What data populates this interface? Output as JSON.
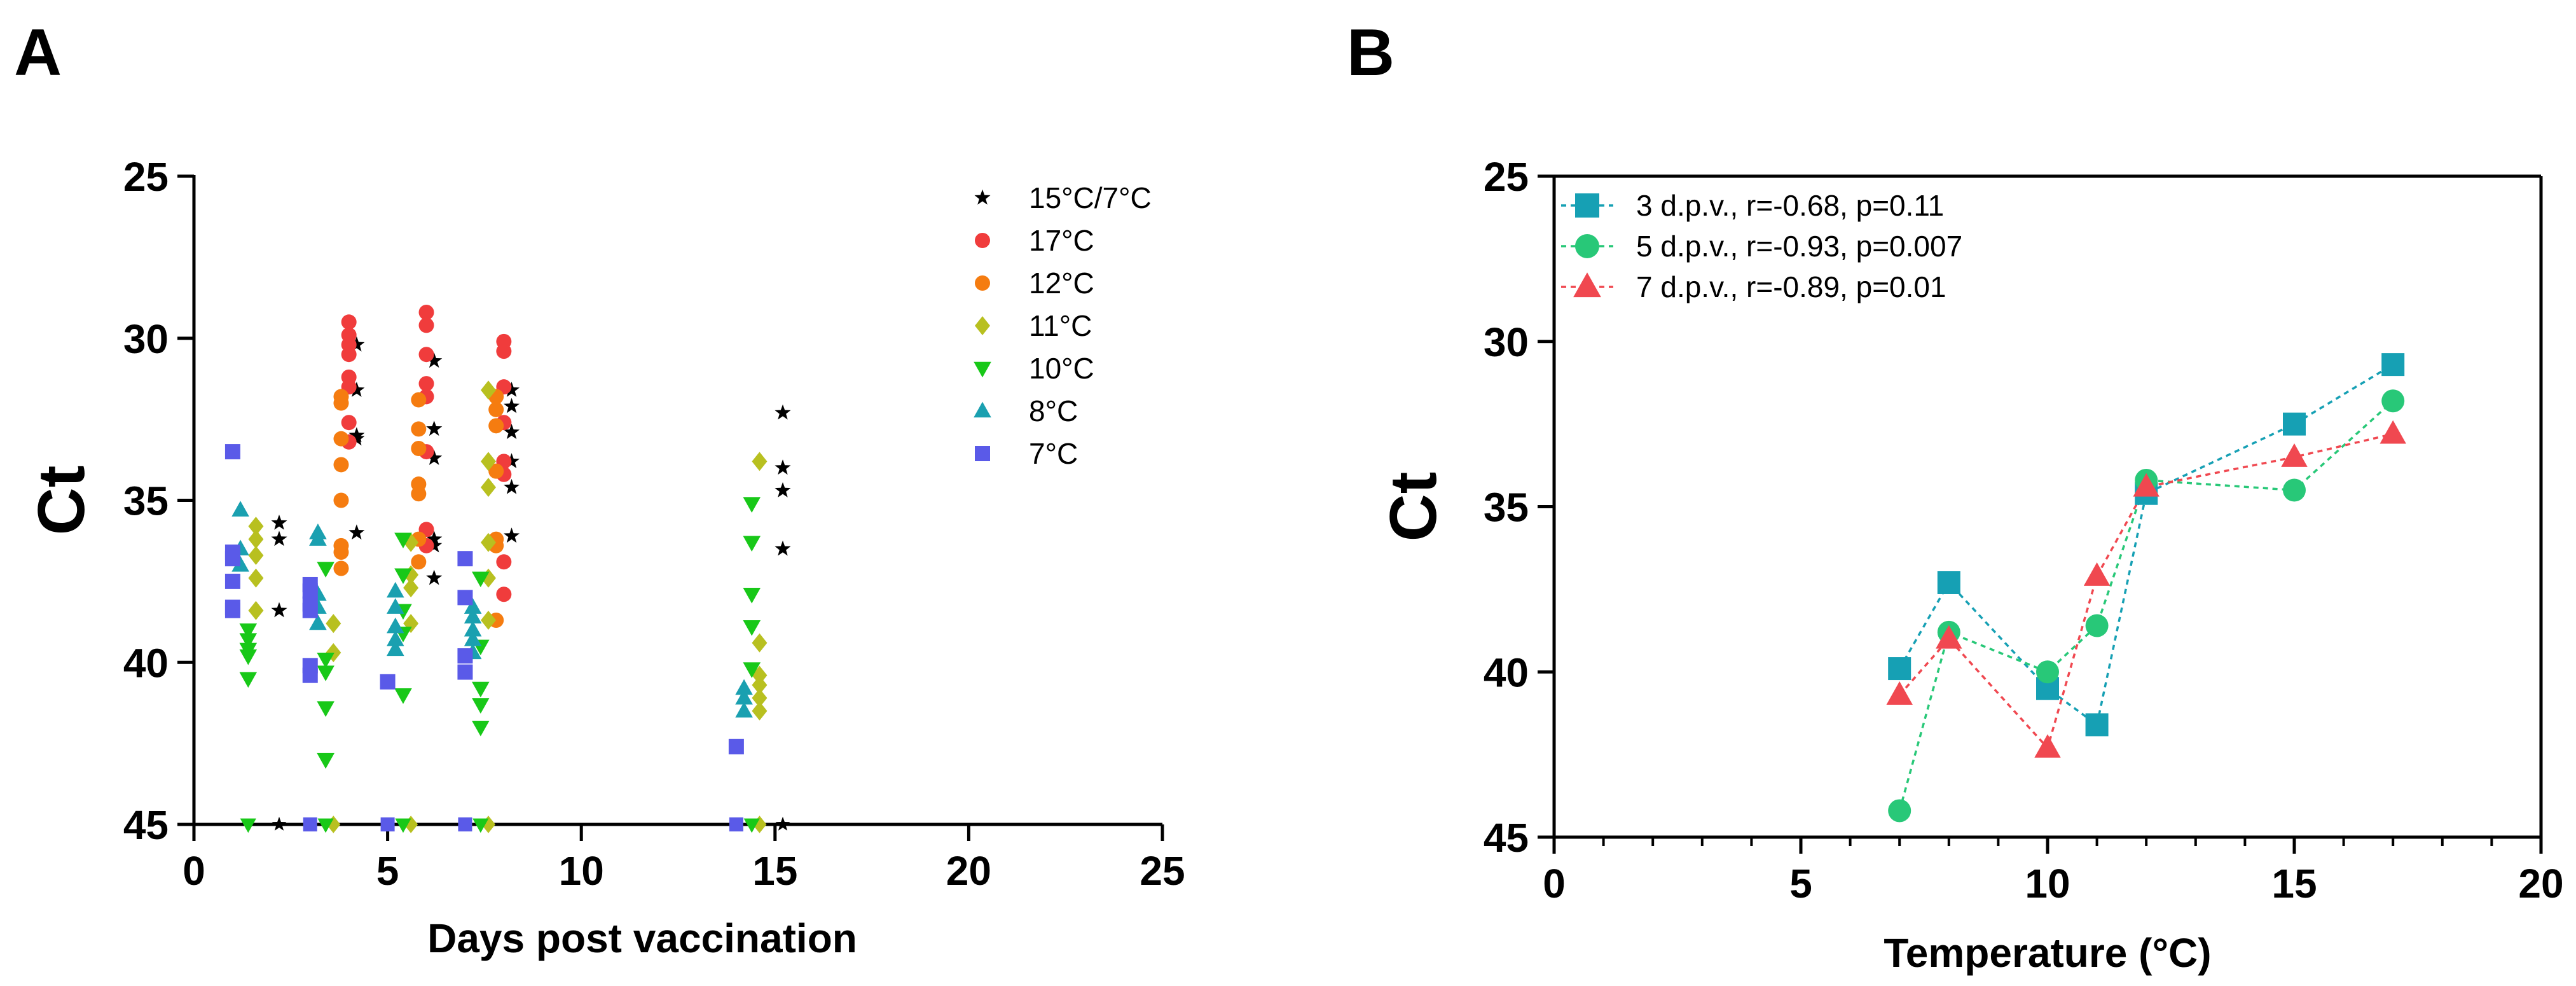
{
  "chart_data": [
    {
      "panel": "A",
      "type": "scatter",
      "title": "",
      "xlabel": "Days post vaccination",
      "ylabel": "Ct",
      "xlim": [
        0,
        25
      ],
      "ylim": [
        25,
        45
      ],
      "y_inverted": true,
      "xticks": [
        0,
        5,
        10,
        15,
        20,
        25
      ],
      "yticks": [
        25,
        30,
        35,
        40,
        45
      ],
      "legend_position": "top-right",
      "series": [
        {
          "name": "15°C/7°C",
          "color": "#000000",
          "marker": "star",
          "points": [
            [
              2.2,
              35.7
            ],
            [
              2.2,
              36.2
            ],
            [
              2.2,
              38.4
            ],
            [
              2.2,
              45
            ],
            [
              4.2,
              30.2
            ],
            [
              4.2,
              31.6
            ],
            [
              4.2,
              33
            ],
            [
              4.2,
              33.1
            ],
            [
              4.2,
              36
            ],
            [
              6.2,
              30.7
            ],
            [
              6.2,
              32.8
            ],
            [
              6.2,
              33.7
            ],
            [
              6.2,
              36.2
            ],
            [
              6.2,
              36.4
            ],
            [
              6.2,
              37.4
            ],
            [
              8.2,
              31.6
            ],
            [
              8.2,
              32.1
            ],
            [
              8.2,
              32.9
            ],
            [
              8.2,
              33.8
            ],
            [
              8.2,
              34.6
            ],
            [
              8.2,
              36.1
            ],
            [
              15.2,
              32.3
            ],
            [
              15.2,
              34
            ],
            [
              15.2,
              34.7
            ],
            [
              15.2,
              36.5
            ],
            [
              15.2,
              45
            ]
          ]
        },
        {
          "name": "17°C",
          "color": "#f03c3c",
          "marker": "circle",
          "points": [
            [
              4,
              29.5
            ],
            [
              4,
              29.9
            ],
            [
              4,
              30.2
            ],
            [
              4,
              30.5
            ],
            [
              4,
              31.2
            ],
            [
              4,
              31.5
            ],
            [
              4,
              32.6
            ],
            [
              4,
              33.2
            ],
            [
              6,
              29.2
            ],
            [
              6,
              29.6
            ],
            [
              6,
              30.5
            ],
            [
              6,
              31.4
            ],
            [
              6,
              31.8
            ],
            [
              6,
              33.5
            ],
            [
              6,
              35.9
            ],
            [
              6,
              36.4
            ],
            [
              8,
              30.1
            ],
            [
              8,
              30.4
            ],
            [
              8,
              31.5
            ],
            [
              8,
              32.6
            ],
            [
              8,
              33.8
            ],
            [
              8,
              34.2
            ],
            [
              8,
              36.9
            ],
            [
              8,
              37.9
            ]
          ]
        },
        {
          "name": "12°C",
          "color": "#f57c10",
          "marker": "circle",
          "points": [
            [
              3.8,
              31.8
            ],
            [
              3.8,
              32
            ],
            [
              3.8,
              33.1
            ],
            [
              3.8,
              33.9
            ],
            [
              3.8,
              35
            ],
            [
              3.8,
              36.4
            ],
            [
              3.8,
              36.6
            ],
            [
              3.8,
              37.1
            ],
            [
              5.8,
              31.9
            ],
            [
              5.8,
              32.8
            ],
            [
              5.8,
              33.4
            ],
            [
              5.8,
              34.5
            ],
            [
              5.8,
              34.8
            ],
            [
              5.8,
              36.2
            ],
            [
              5.8,
              36.9
            ],
            [
              7.8,
              31.8
            ],
            [
              7.8,
              32.2
            ],
            [
              7.8,
              32.7
            ],
            [
              7.8,
              34.1
            ],
            [
              7.8,
              36.2
            ],
            [
              7.8,
              36.4
            ],
            [
              7.8,
              38.7
            ]
          ]
        },
        {
          "name": "11°C",
          "color": "#b8c020",
          "marker": "diamond",
          "points": [
            [
              1.6,
              35.8
            ],
            [
              1.6,
              36.2
            ],
            [
              1.6,
              36.7
            ],
            [
              1.6,
              37.4
            ],
            [
              1.6,
              38.4
            ],
            [
              3.6,
              38.8
            ],
            [
              3.6,
              39.7
            ],
            [
              3.6,
              45
            ],
            [
              5.6,
              36.3
            ],
            [
              5.6,
              37.3
            ],
            [
              5.6,
              37.7
            ],
            [
              5.6,
              38.8
            ],
            [
              5.6,
              45
            ],
            [
              7.6,
              31.6
            ],
            [
              7.6,
              33.8
            ],
            [
              7.6,
              34.6
            ],
            [
              7.6,
              36.3
            ],
            [
              7.6,
              37.4
            ],
            [
              7.6,
              38.7
            ],
            [
              7.6,
              45
            ],
            [
              14.6,
              33.8
            ],
            [
              14.6,
              39.4
            ],
            [
              14.6,
              40.4
            ],
            [
              14.6,
              40.7
            ],
            [
              14.6,
              41.1
            ],
            [
              14.6,
              41.5
            ],
            [
              14.6,
              45
            ]
          ]
        },
        {
          "name": "10°C",
          "color": "#18c818",
          "marker": "triangle-down",
          "points": [
            [
              1.4,
              39
            ],
            [
              1.4,
              39.3
            ],
            [
              1.4,
              39.6
            ],
            [
              1.4,
              39.8
            ],
            [
              1.4,
              40.5
            ],
            [
              1.4,
              45
            ],
            [
              3.4,
              37.1
            ],
            [
              3.4,
              39.9
            ],
            [
              3.4,
              40.3
            ],
            [
              3.4,
              41.4
            ],
            [
              3.4,
              43
            ],
            [
              3.4,
              45
            ],
            [
              5.4,
              36.2
            ],
            [
              5.4,
              37.3
            ],
            [
              5.4,
              38.4
            ],
            [
              5.4,
              39.1
            ],
            [
              5.4,
              41
            ],
            [
              5.4,
              45
            ],
            [
              7.4,
              37.4
            ],
            [
              7.4,
              39.5
            ],
            [
              7.4,
              40.8
            ],
            [
              7.4,
              41.3
            ],
            [
              7.4,
              42
            ],
            [
              7.4,
              45
            ],
            [
              14.4,
              35.1
            ],
            [
              14.4,
              36.3
            ],
            [
              14.4,
              37.9
            ],
            [
              14.4,
              38.9
            ],
            [
              14.4,
              40.2
            ],
            [
              14.4,
              45
            ]
          ]
        },
        {
          "name": "8°C",
          "color": "#1aa0b0",
          "marker": "triangle-up",
          "points": [
            [
              1.2,
              35.3
            ],
            [
              1.2,
              36.5
            ],
            [
              1.2,
              37
            ],
            [
              3.2,
              36
            ],
            [
              3.2,
              36.2
            ],
            [
              3.2,
              37.9
            ],
            [
              3.2,
              38.3
            ],
            [
              3.2,
              38.8
            ],
            [
              5.2,
              37.8
            ],
            [
              5.2,
              38.3
            ],
            [
              5.2,
              38.9
            ],
            [
              5.2,
              39.3
            ],
            [
              5.2,
              39.6
            ],
            [
              7.2,
              38.3
            ],
            [
              7.2,
              38.6
            ],
            [
              7.2,
              39
            ],
            [
              7.2,
              39.3
            ],
            [
              7.2,
              39.7
            ],
            [
              14.2,
              40.8
            ],
            [
              14.2,
              41.1
            ],
            [
              14.2,
              41.5
            ]
          ]
        },
        {
          "name": "7°C",
          "color": "#5a5ae8",
          "marker": "square",
          "points": [
            [
              1,
              33.5
            ],
            [
              1,
              36.6
            ],
            [
              1,
              36.8
            ],
            [
              1,
              37.5
            ],
            [
              1,
              38.3
            ],
            [
              1,
              38.4
            ],
            [
              3,
              37.6
            ],
            [
              3,
              37.8
            ],
            [
              3,
              38.2
            ],
            [
              3,
              38.4
            ],
            [
              3,
              40.1
            ],
            [
              3,
              40.4
            ],
            [
              3,
              45
            ],
            [
              5,
              40.6
            ],
            [
              5,
              45
            ],
            [
              7,
              36.8
            ],
            [
              7,
              38
            ],
            [
              7,
              39.8
            ],
            [
              7,
              40.3
            ],
            [
              7,
              45
            ],
            [
              14,
              42.6
            ],
            [
              14,
              45
            ]
          ]
        }
      ]
    },
    {
      "panel": "B",
      "type": "line",
      "title": "",
      "xlabel": "Temperature (°C)",
      "ylabel": "Ct",
      "xlim": [
        0,
        20
      ],
      "ylim": [
        25,
        45
      ],
      "y_inverted": true,
      "xticks": [
        0,
        5,
        10,
        15,
        20
      ],
      "yticks": [
        25,
        30,
        35,
        40,
        45
      ],
      "legend_position": "top-left",
      "x": [
        7,
        8,
        10,
        11,
        12,
        15,
        17
      ],
      "series": [
        {
          "name": "3 d.p.v., r=-0.68, p=0.11",
          "color": "#16a0b4",
          "marker": "square",
          "values": [
            39.9,
            37.3,
            40.5,
            41.6,
            34.6,
            32.5,
            30.7
          ]
        },
        {
          "name": "5 d.p.v., r=-0.93, p=0.007",
          "color": "#28c878",
          "marker": "circle",
          "values": [
            44.2,
            38.8,
            40,
            38.6,
            34.2,
            34.5,
            31.8
          ]
        },
        {
          "name": "7 d.p.v., r=-0.89, p=0.01",
          "color": "#f04850",
          "marker": "triangle-up",
          "values": [
            40.7,
            39,
            42.3,
            37.1,
            34.4,
            33.5,
            32.8
          ]
        }
      ]
    }
  ],
  "panel_labels": [
    "A",
    "B"
  ]
}
